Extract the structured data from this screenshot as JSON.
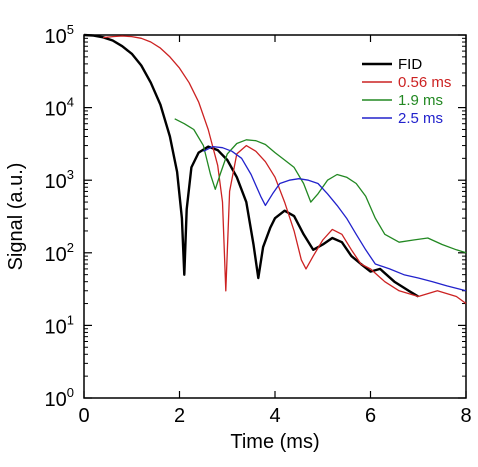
{
  "chart_data": {
    "type": "line",
    "title": "",
    "xlabel": "Time (ms)",
    "ylabel": "Signal (a.u.)",
    "xlim": [
      0,
      8
    ],
    "ylim": [
      1,
      100000
    ],
    "yscale": "log",
    "grid": false,
    "legend": "top-right",
    "x_ticks": [
      "0",
      "2",
      "4",
      "6",
      "8"
    ],
    "y_ticks": [
      {
        "base": "10",
        "exp": "0"
      },
      {
        "base": "10",
        "exp": "1"
      },
      {
        "base": "10",
        "exp": "2"
      },
      {
        "base": "10",
        "exp": "3"
      },
      {
        "base": "10",
        "exp": "4"
      },
      {
        "base": "10",
        "exp": "5"
      }
    ],
    "series": [
      {
        "name": "FID",
        "color": "#000000",
        "points": [
          [
            0.0,
            100000
          ],
          [
            0.2,
            98000
          ],
          [
            0.4,
            93000
          ],
          [
            0.6,
            84000
          ],
          [
            0.8,
            70000
          ],
          [
            1.0,
            55000
          ],
          [
            1.2,
            38000
          ],
          [
            1.4,
            22000
          ],
          [
            1.6,
            11000
          ],
          [
            1.8,
            4000
          ],
          [
            1.95,
            1300
          ],
          [
            2.05,
            300
          ],
          [
            2.1,
            50
          ],
          [
            2.15,
            400
          ],
          [
            2.25,
            1500
          ],
          [
            2.4,
            2400
          ],
          [
            2.6,
            2900
          ],
          [
            2.8,
            2600
          ],
          [
            3.0,
            1900
          ],
          [
            3.2,
            1100
          ],
          [
            3.4,
            500
          ],
          [
            3.55,
            130
          ],
          [
            3.65,
            45
          ],
          [
            3.75,
            120
          ],
          [
            3.9,
            220
          ],
          [
            4.0,
            300
          ],
          [
            4.2,
            380
          ],
          [
            4.4,
            320
          ],
          [
            4.6,
            180
          ],
          [
            4.8,
            110
          ],
          [
            5.0,
            130
          ],
          [
            5.2,
            160
          ],
          [
            5.4,
            140
          ],
          [
            5.6,
            90
          ],
          [
            5.8,
            70
          ],
          [
            6.0,
            55
          ],
          [
            6.2,
            60
          ],
          [
            6.5,
            40
          ],
          [
            6.8,
            30
          ],
          [
            7.0,
            25
          ]
        ]
      },
      {
        "name": "0.56 ms",
        "color": "#cc2222",
        "points": [
          [
            0.4,
            92000
          ],
          [
            0.6,
            95000
          ],
          [
            0.8,
            97000
          ],
          [
            1.0,
            95000
          ],
          [
            1.2,
            90000
          ],
          [
            1.4,
            80000
          ],
          [
            1.6,
            66000
          ],
          [
            1.8,
            50000
          ],
          [
            2.0,
            35000
          ],
          [
            2.2,
            22000
          ],
          [
            2.4,
            12000
          ],
          [
            2.6,
            5000
          ],
          [
            2.8,
            1600
          ],
          [
            2.9,
            500
          ],
          [
            2.97,
            30
          ],
          [
            3.05,
            700
          ],
          [
            3.2,
            2300
          ],
          [
            3.4,
            3000
          ],
          [
            3.6,
            2500
          ],
          [
            3.8,
            1800
          ],
          [
            4.0,
            1100
          ],
          [
            4.2,
            500
          ],
          [
            4.4,
            200
          ],
          [
            4.55,
            80
          ],
          [
            4.65,
            60
          ],
          [
            4.8,
            90
          ],
          [
            5.0,
            150
          ],
          [
            5.2,
            210
          ],
          [
            5.4,
            180
          ],
          [
            5.6,
            110
          ],
          [
            5.8,
            70
          ],
          [
            6.0,
            60
          ],
          [
            6.3,
            40
          ],
          [
            6.6,
            30
          ],
          [
            7.0,
            25
          ],
          [
            7.4,
            30
          ],
          [
            7.8,
            25
          ],
          [
            8.0,
            20
          ]
        ]
      },
      {
        "name": "1.9 ms",
        "color": "#228822",
        "points": [
          [
            1.9,
            7000
          ],
          [
            2.1,
            6000
          ],
          [
            2.3,
            5000
          ],
          [
            2.5,
            3000
          ],
          [
            2.65,
            1200
          ],
          [
            2.75,
            750
          ],
          [
            2.85,
            1200
          ],
          [
            3.0,
            2300
          ],
          [
            3.2,
            3200
          ],
          [
            3.4,
            3600
          ],
          [
            3.6,
            3500
          ],
          [
            3.8,
            3100
          ],
          [
            4.0,
            2400
          ],
          [
            4.2,
            1900
          ],
          [
            4.4,
            1500
          ],
          [
            4.6,
            900
          ],
          [
            4.75,
            500
          ],
          [
            4.9,
            650
          ],
          [
            5.1,
            1000
          ],
          [
            5.3,
            1200
          ],
          [
            5.5,
            1100
          ],
          [
            5.7,
            900
          ],
          [
            5.9,
            600
          ],
          [
            6.1,
            300
          ],
          [
            6.3,
            180
          ],
          [
            6.6,
            140
          ],
          [
            6.9,
            150
          ],
          [
            7.2,
            160
          ],
          [
            7.5,
            130
          ],
          [
            7.8,
            110
          ],
          [
            8.0,
            100
          ]
        ]
      },
      {
        "name": "2.5 ms",
        "color": "#2222cc",
        "points": [
          [
            2.5,
            2500
          ],
          [
            2.7,
            2900
          ],
          [
            2.9,
            2800
          ],
          [
            3.1,
            2500
          ],
          [
            3.3,
            2000
          ],
          [
            3.5,
            1200
          ],
          [
            3.7,
            600
          ],
          [
            3.8,
            450
          ],
          [
            3.95,
            650
          ],
          [
            4.1,
            900
          ],
          [
            4.3,
            1000
          ],
          [
            4.5,
            1050
          ],
          [
            4.7,
            1000
          ],
          [
            4.9,
            900
          ],
          [
            5.1,
            650
          ],
          [
            5.3,
            450
          ],
          [
            5.5,
            300
          ],
          [
            5.7,
            180
          ],
          [
            5.9,
            110
          ],
          [
            6.1,
            70
          ],
          [
            6.4,
            60
          ],
          [
            6.7,
            50
          ],
          [
            7.0,
            45
          ],
          [
            7.3,
            40
          ],
          [
            7.6,
            35
          ],
          [
            8.0,
            30
          ]
        ]
      }
    ]
  }
}
